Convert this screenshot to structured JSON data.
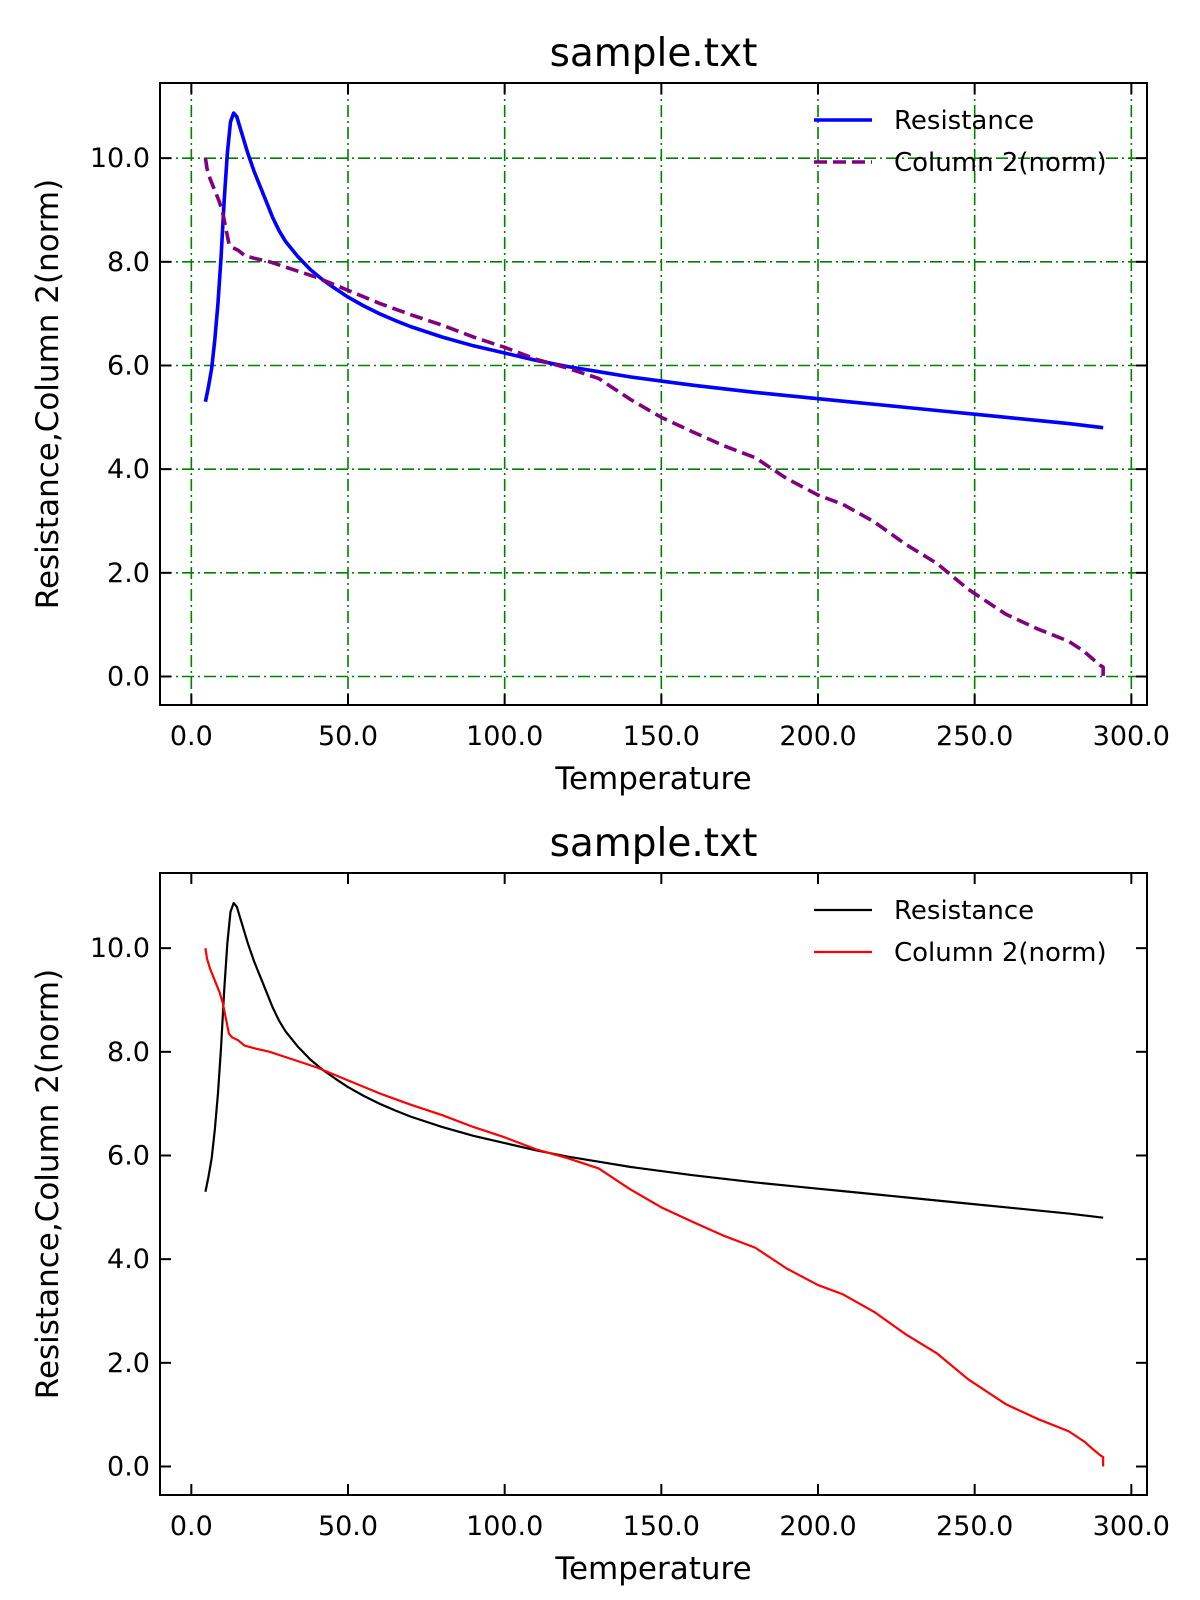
{
  "chart_data": [
    {
      "type": "line",
      "title": "sample.txt",
      "xlabel": "Temperature",
      "ylabel": "Resistance,Column 2(norm)",
      "xlim": [
        -10,
        305
      ],
      "ylim": [
        -0.55,
        11.45
      ],
      "xticks": [
        0,
        50,
        100,
        150,
        200,
        250,
        300
      ],
      "xtick_labels": [
        "0.0",
        "50.0",
        "100.0",
        "150.0",
        "200.0",
        "250.0",
        "300.0"
      ],
      "yticks": [
        0,
        2,
        4,
        6,
        8,
        10
      ],
      "ytick_labels": [
        "0.0",
        "2.0",
        "4.0",
        "6.0",
        "8.0",
        "10.0"
      ],
      "grid": true,
      "grid_color": "#008000",
      "grid_style": "dashdot",
      "legend_position": "top-right",
      "series": [
        {
          "name": "Resistance",
          "color": "#0000ff",
          "line_style": "solid",
          "x": [
            4.5,
            5.5,
            6.5,
            7.5,
            8.5,
            9.5,
            10.5,
            11.5,
            12.5,
            13.5,
            14.5,
            16,
            18,
            20,
            22,
            24,
            26,
            28,
            30,
            34,
            38,
            42,
            46,
            50,
            55,
            60,
            65,
            70,
            80,
            90,
            100,
            110,
            120,
            130,
            140,
            150,
            160,
            170,
            180,
            190,
            200,
            210,
            220,
            230,
            240,
            250,
            260,
            270,
            280,
            291
          ],
          "y": [
            5.3,
            5.6,
            5.95,
            6.5,
            7.2,
            8.1,
            9.2,
            10.1,
            10.7,
            10.87,
            10.8,
            10.5,
            10.1,
            9.75,
            9.45,
            9.15,
            8.85,
            8.6,
            8.4,
            8.1,
            7.85,
            7.65,
            7.48,
            7.32,
            7.15,
            7.0,
            6.87,
            6.75,
            6.55,
            6.38,
            6.24,
            6.1,
            5.98,
            5.88,
            5.78,
            5.7,
            5.62,
            5.55,
            5.48,
            5.42,
            5.36,
            5.3,
            5.24,
            5.18,
            5.12,
            5.06,
            5.0,
            4.94,
            4.88,
            4.8
          ]
        },
        {
          "name": "Column 2(norm)",
          "color": "#800080",
          "line_style": "dashed",
          "x": [
            4.5,
            5,
            6,
            7,
            8,
            9,
            10,
            11,
            12,
            13,
            15,
            17,
            20,
            25,
            30,
            40,
            50,
            60,
            70,
            80,
            90,
            100,
            110,
            120,
            130,
            140,
            150,
            160,
            170,
            180,
            190,
            200,
            208,
            218,
            228,
            238,
            248,
            260,
            270,
            280,
            285,
            288,
            290,
            291,
            291
          ],
          "y": [
            10.0,
            9.8,
            9.6,
            9.45,
            9.3,
            9.15,
            8.95,
            8.65,
            8.35,
            8.28,
            8.22,
            8.12,
            8.07,
            8.0,
            7.9,
            7.7,
            7.45,
            7.2,
            6.98,
            6.78,
            6.55,
            6.35,
            6.12,
            5.95,
            5.75,
            5.35,
            5.0,
            4.72,
            4.45,
            4.22,
            3.82,
            3.5,
            3.32,
            2.98,
            2.55,
            2.18,
            1.68,
            1.2,
            0.92,
            0.68,
            0.48,
            0.32,
            0.22,
            0.18,
            0.0
          ]
        }
      ]
    },
    {
      "type": "line",
      "title": "sample.txt",
      "xlabel": "Temperature",
      "ylabel": "Resistance,Column 2(norm)",
      "xlim": [
        -10,
        305
      ],
      "ylim": [
        -0.55,
        11.45
      ],
      "xticks": [
        0,
        50,
        100,
        150,
        200,
        250,
        300
      ],
      "xtick_labels": [
        "0.0",
        "50.0",
        "100.0",
        "150.0",
        "200.0",
        "250.0",
        "300.0"
      ],
      "yticks": [
        0,
        2,
        4,
        6,
        8,
        10
      ],
      "ytick_labels": [
        "0.0",
        "2.0",
        "4.0",
        "6.0",
        "8.0",
        "10.0"
      ],
      "grid": false,
      "legend_position": "top-right",
      "series": [
        {
          "name": "Resistance",
          "color": "#000000",
          "line_style": "solid",
          "x": [
            4.5,
            5.5,
            6.5,
            7.5,
            8.5,
            9.5,
            10.5,
            11.5,
            12.5,
            13.5,
            14.5,
            16,
            18,
            20,
            22,
            24,
            26,
            28,
            30,
            34,
            38,
            42,
            46,
            50,
            55,
            60,
            65,
            70,
            80,
            90,
            100,
            110,
            120,
            130,
            140,
            150,
            160,
            170,
            180,
            190,
            200,
            210,
            220,
            230,
            240,
            250,
            260,
            270,
            280,
            291
          ],
          "y": [
            5.3,
            5.6,
            5.95,
            6.5,
            7.2,
            8.1,
            9.2,
            10.1,
            10.7,
            10.87,
            10.8,
            10.5,
            10.1,
            9.75,
            9.45,
            9.15,
            8.85,
            8.6,
            8.4,
            8.1,
            7.85,
            7.65,
            7.48,
            7.32,
            7.15,
            7.0,
            6.87,
            6.75,
            6.55,
            6.38,
            6.24,
            6.1,
            5.98,
            5.88,
            5.78,
            5.7,
            5.62,
            5.55,
            5.48,
            5.42,
            5.36,
            5.3,
            5.24,
            5.18,
            5.12,
            5.06,
            5.0,
            4.94,
            4.88,
            4.8
          ]
        },
        {
          "name": "Column 2(norm)",
          "color": "#ff0000",
          "line_style": "solid",
          "x": [
            4.5,
            5,
            6,
            7,
            8,
            9,
            10,
            11,
            12,
            13,
            15,
            17,
            20,
            25,
            30,
            40,
            50,
            60,
            70,
            80,
            90,
            100,
            110,
            120,
            130,
            140,
            150,
            160,
            170,
            180,
            190,
            200,
            208,
            218,
            228,
            238,
            248,
            260,
            270,
            280,
            285,
            288,
            290,
            291,
            291
          ],
          "y": [
            10.0,
            9.8,
            9.6,
            9.45,
            9.3,
            9.15,
            8.95,
            8.65,
            8.35,
            8.28,
            8.22,
            8.12,
            8.07,
            8.0,
            7.9,
            7.7,
            7.45,
            7.2,
            6.98,
            6.78,
            6.55,
            6.35,
            6.12,
            5.95,
            5.75,
            5.35,
            5.0,
            4.72,
            4.45,
            4.22,
            3.82,
            3.5,
            3.32,
            2.98,
            2.55,
            2.18,
            1.68,
            1.2,
            0.92,
            0.68,
            0.48,
            0.32,
            0.22,
            0.18,
            0.0
          ]
        }
      ]
    }
  ]
}
